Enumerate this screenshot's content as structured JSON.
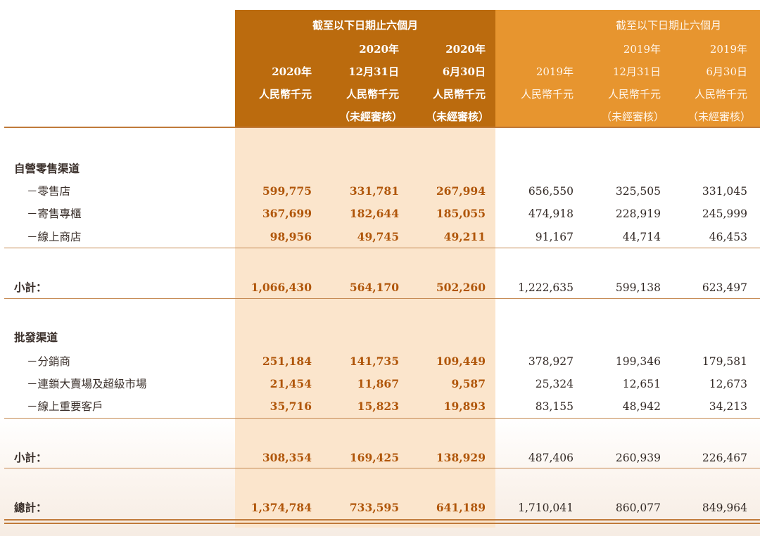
{
  "header": {
    "group_2020": "截至以下日期止六個月",
    "group_2019": "截至以下日期止六個月",
    "columns": [
      {
        "year": "2020年",
        "date": "",
        "unit": "人民幣千元",
        "note": ""
      },
      {
        "year": "2020年",
        "date": "12月31日",
        "unit": "人民幣千元",
        "note": "（未經審核）"
      },
      {
        "year": "2020年",
        "date": "6月30日",
        "unit": "人民幣千元",
        "note": "（未經審核）"
      },
      {
        "year": "2019年",
        "date": "",
        "unit": "人民幣千元",
        "note": ""
      },
      {
        "year": "2019年",
        "date": "12月31日",
        "unit": "人民幣千元",
        "note": "（未經審核）"
      },
      {
        "year": "2019年",
        "date": "6月30日",
        "unit": "人民幣千元",
        "note": "（未經審核）"
      }
    ]
  },
  "sections": {
    "self_operated": {
      "title": "自營零售渠道",
      "rows": [
        {
          "label": "－零售店",
          "values": [
            "599,775",
            "331,781",
            "267,994",
            "656,550",
            "325,505",
            "331,045"
          ]
        },
        {
          "label": "－寄售專櫃",
          "values": [
            "367,699",
            "182,644",
            "185,055",
            "474,918",
            "228,919",
            "245,999"
          ]
        },
        {
          "label": "－線上商店",
          "values": [
            "98,956",
            "49,745",
            "49,211",
            "91,167",
            "44,714",
            "46,453"
          ]
        }
      ],
      "subtotal": {
        "label": "小計：",
        "values": [
          "1,066,430",
          "564,170",
          "502,260",
          "1,222,635",
          "599,138",
          "623,497"
        ]
      }
    },
    "wholesale": {
      "title": "批發渠道",
      "rows": [
        {
          "label": "－分銷商",
          "values": [
            "251,184",
            "141,735",
            "109,449",
            "378,927",
            "199,346",
            "179,581"
          ]
        },
        {
          "label": "－連鎖大賣場及超級市場",
          "values": [
            "21,454",
            "11,867",
            "9,587",
            "25,324",
            "12,651",
            "12,673"
          ]
        },
        {
          "label": "－線上重要客戶",
          "values": [
            "35,716",
            "15,823",
            "19,893",
            "83,155",
            "48,942",
            "34,213"
          ]
        }
      ],
      "subtotal": {
        "label": "小計：",
        "values": [
          "308,354",
          "169,425",
          "138,929",
          "487,406",
          "260,939",
          "226,467"
        ]
      }
    }
  },
  "total": {
    "label": "總計：",
    "values": [
      "1,374,784",
      "733,595",
      "641,189",
      "1,710,041",
      "860,077",
      "849,964"
    ]
  },
  "colors": {
    "band_2020": "#bb6b0e",
    "band_2019": "#e7952f",
    "column_tint_2020": "#fbe5cc",
    "value_2020": "#b0560a"
  }
}
